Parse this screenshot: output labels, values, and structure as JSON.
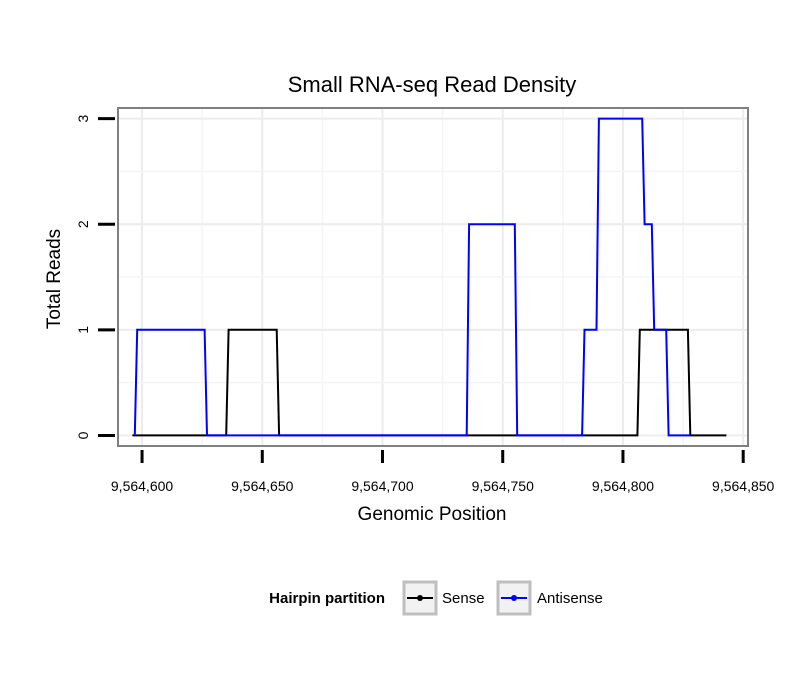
{
  "chart_data": {
    "type": "line",
    "title": "Small RNA-seq Read Density",
    "xlabel": "Genomic Position",
    "ylabel": "Total Reads",
    "xlim": [
      9564590,
      9564852
    ],
    "ylim": [
      -0.1,
      3.1
    ],
    "grid": true,
    "x_ticks": [
      9564600,
      9564650,
      9564700,
      9564750,
      9564800,
      9564850
    ],
    "x_tick_labels": [
      "9,564,600",
      "9,564,650",
      "9,564,700",
      "9,564,750",
      "9,564,800",
      "9,564,850"
    ],
    "y_ticks": [
      0,
      1,
      2,
      3
    ],
    "y_tick_labels": [
      "0",
      "1",
      "2",
      "3"
    ],
    "legend": {
      "title": "Hairpin partition",
      "position": "bottom"
    },
    "series": [
      {
        "name": "Sense",
        "color": "#000000",
        "x": [
          9564596,
          9564635,
          9564636,
          9564656,
          9564657,
          9564806,
          9564807,
          9564827,
          9564828,
          9564843
        ],
        "values": [
          0,
          0,
          1,
          1,
          0,
          0,
          1,
          1,
          0,
          0
        ]
      },
      {
        "name": "Antisense",
        "color": "#0000ff",
        "x": [
          9564597,
          9564598,
          9564626,
          9564627,
          9564735,
          9564736,
          9564755,
          9564756,
          9564783,
          9564784,
          9564789,
          9564790,
          9564808,
          9564809,
          9564812,
          9564813,
          9564818,
          9564819,
          9564828
        ],
        "values": [
          0,
          1,
          1,
          0,
          0,
          2,
          2,
          0,
          0,
          1,
          1,
          3,
          3,
          2,
          2,
          1,
          1,
          0,
          0
        ]
      }
    ]
  }
}
